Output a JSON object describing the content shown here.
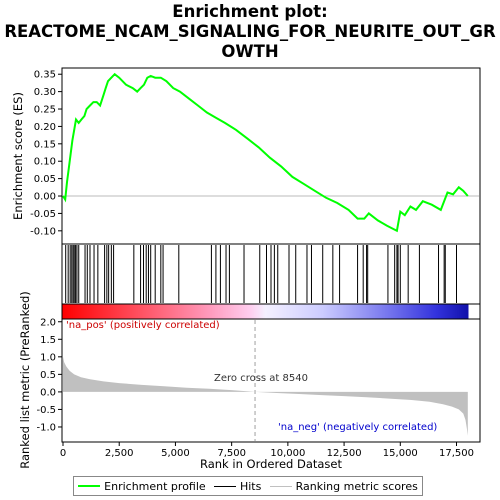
{
  "title_lines": [
    "Enrichment plot:",
    "REACTOME_NCAM_SIGNALING_FOR_NEURITE_OUT_GR",
    "OWTH"
  ],
  "colors": {
    "es_line": "#00ff00",
    "hits": "#000000",
    "metric_fill": "#c0c0c0",
    "pos_label": "#cc0000",
    "neg_label": "#0000cc",
    "zero_line": "#a0a0a0"
  },
  "chart_data": [
    {
      "type": "line",
      "name": "enrichment-profile",
      "ylabel": "Enrichment score (ES)",
      "xlim": [
        0,
        18500
      ],
      "ylim": [
        -0.135,
        0.365
      ],
      "yticks": [
        -0.1,
        -0.05,
        0.0,
        0.05,
        0.1,
        0.15,
        0.2,
        0.25,
        0.3,
        0.35
      ],
      "ytick_labels": [
        "-0.10",
        "-0.05",
        "0.00",
        "0.05",
        "0.10",
        "0.15",
        "0.20",
        "0.25",
        "0.30",
        "0.35"
      ],
      "grid": false,
      "points": [
        [
          0,
          0.0
        ],
        [
          100,
          -0.01
        ],
        [
          180,
          0.04
        ],
        [
          260,
          0.08
        ],
        [
          340,
          0.12
        ],
        [
          420,
          0.16
        ],
        [
          500,
          0.19
        ],
        [
          580,
          0.22
        ],
        [
          700,
          0.21
        ],
        [
          820,
          0.22
        ],
        [
          950,
          0.23
        ],
        [
          1050,
          0.25
        ],
        [
          1200,
          0.26
        ],
        [
          1350,
          0.27
        ],
        [
          1500,
          0.27
        ],
        [
          1650,
          0.26
        ],
        [
          1800,
          0.29
        ],
        [
          1900,
          0.31
        ],
        [
          2000,
          0.33
        ],
        [
          2150,
          0.34
        ],
        [
          2300,
          0.35
        ],
        [
          2500,
          0.34
        ],
        [
          2800,
          0.32
        ],
        [
          3100,
          0.31
        ],
        [
          3300,
          0.3
        ],
        [
          3450,
          0.31
        ],
        [
          3600,
          0.32
        ],
        [
          3750,
          0.34
        ],
        [
          3900,
          0.345
        ],
        [
          4100,
          0.34
        ],
        [
          4350,
          0.34
        ],
        [
          4600,
          0.33
        ],
        [
          4900,
          0.31
        ],
        [
          5200,
          0.3
        ],
        [
          5600,
          0.28
        ],
        [
          6000,
          0.26
        ],
        [
          6400,
          0.24
        ],
        [
          6800,
          0.225
        ],
        [
          7200,
          0.21
        ],
        [
          7700,
          0.19
        ],
        [
          8200,
          0.165
        ],
        [
          8700,
          0.14
        ],
        [
          9200,
          0.11
        ],
        [
          9700,
          0.085
        ],
        [
          10200,
          0.055
        ],
        [
          10700,
          0.035
        ],
        [
          11200,
          0.015
        ],
        [
          11700,
          -0.005
        ],
        [
          12200,
          -0.02
        ],
        [
          12700,
          -0.04
        ],
        [
          13100,
          -0.065
        ],
        [
          13400,
          -0.065
        ],
        [
          13600,
          -0.05
        ],
        [
          14000,
          -0.07
        ],
        [
          14400,
          -0.085
        ],
        [
          14700,
          -0.095
        ],
        [
          14850,
          -0.1
        ],
        [
          15000,
          -0.045
        ],
        [
          15200,
          -0.055
        ],
        [
          15450,
          -0.03
        ],
        [
          15700,
          -0.04
        ],
        [
          16000,
          -0.015
        ],
        [
          16400,
          -0.025
        ],
        [
          16800,
          -0.04
        ],
        [
          17100,
          0.01
        ],
        [
          17350,
          0.005
        ],
        [
          17600,
          0.025
        ],
        [
          17800,
          0.015
        ],
        [
          18000,
          0.0
        ]
      ]
    },
    {
      "type": "hits",
      "name": "hits",
      "positions": [
        120,
        230,
        320,
        390,
        450,
        500,
        560,
        620,
        700,
        980,
        1080,
        1200,
        1380,
        1550,
        1850,
        1950,
        2030,
        2150,
        2250,
        3150,
        3450,
        3580,
        3700,
        3800,
        3900,
        4100,
        4350,
        4450,
        5150,
        6600,
        6800,
        7000,
        7250,
        7400,
        8050,
        8750,
        9050,
        9250,
        9400,
        9550,
        10050,
        10350,
        10850,
        11050,
        11550,
        12000,
        12300,
        13100,
        13350,
        13500,
        13550,
        14450,
        14750,
        14850,
        14900,
        15000,
        15350,
        15850,
        16700,
        16950,
        17000,
        17500
      ]
    },
    {
      "type": "area",
      "name": "ranked-list-metric",
      "ylabel": "Ranked list metric (PreRanked)",
      "xlabel": "Rank in Ordered Dataset",
      "xlim": [
        0,
        18500
      ],
      "ylim": [
        -1.4,
        2.05
      ],
      "yticks": [
        -1.0,
        -0.5,
        0.0,
        0.5,
        1.0,
        1.5,
        2.0
      ],
      "ytick_labels": [
        "-1.0",
        "-0.5",
        "0.0",
        "0.5",
        "1.0",
        "1.5",
        "2.0"
      ],
      "xticks": [
        0,
        2500,
        5000,
        7500,
        10000,
        12500,
        15000,
        17500
      ],
      "xtick_labels": [
        "0",
        "2,500",
        "5,000",
        "7,500",
        "10,000",
        "12,500",
        "15,000",
        "17,500"
      ],
      "points": [
        [
          0,
          1.0
        ],
        [
          50,
          0.85
        ],
        [
          150,
          0.72
        ],
        [
          300,
          0.6
        ],
        [
          500,
          0.5
        ],
        [
          800,
          0.42
        ],
        [
          1200,
          0.36
        ],
        [
          1800,
          0.3
        ],
        [
          2500,
          0.25
        ],
        [
          3500,
          0.2
        ],
        [
          4500,
          0.16
        ],
        [
          5500,
          0.12
        ],
        [
          6500,
          0.09
        ],
        [
          7500,
          0.05
        ],
        [
          8540,
          0.0
        ],
        [
          9500,
          -0.03
        ],
        [
          10500,
          -0.06
        ],
        [
          11500,
          -0.09
        ],
        [
          12500,
          -0.12
        ],
        [
          13500,
          -0.15
        ],
        [
          14500,
          -0.19
        ],
        [
          15500,
          -0.23
        ],
        [
          16300,
          -0.28
        ],
        [
          16900,
          -0.35
        ],
        [
          17300,
          -0.42
        ],
        [
          17600,
          -0.5
        ],
        [
          17800,
          -0.62
        ],
        [
          17900,
          -0.8
        ],
        [
          17960,
          -1.05
        ],
        [
          18000,
          -1.25
        ]
      ],
      "zero_cross": 8540,
      "n_genes": 18000
    }
  ],
  "annotations": {
    "pos_label": "'na_pos' (positively correlated)",
    "neg_label": "'na_neg' (negatively correlated)",
    "zero_cross_label": "Zero cross at 8540"
  },
  "legend": {
    "placement": "bottom",
    "items": [
      {
        "label": "Enrichment profile",
        "color": "#00ff00"
      },
      {
        "label": "Hits",
        "color": "#000000"
      },
      {
        "label": "Ranking metric scores",
        "color": "#c0c0c0"
      }
    ]
  }
}
